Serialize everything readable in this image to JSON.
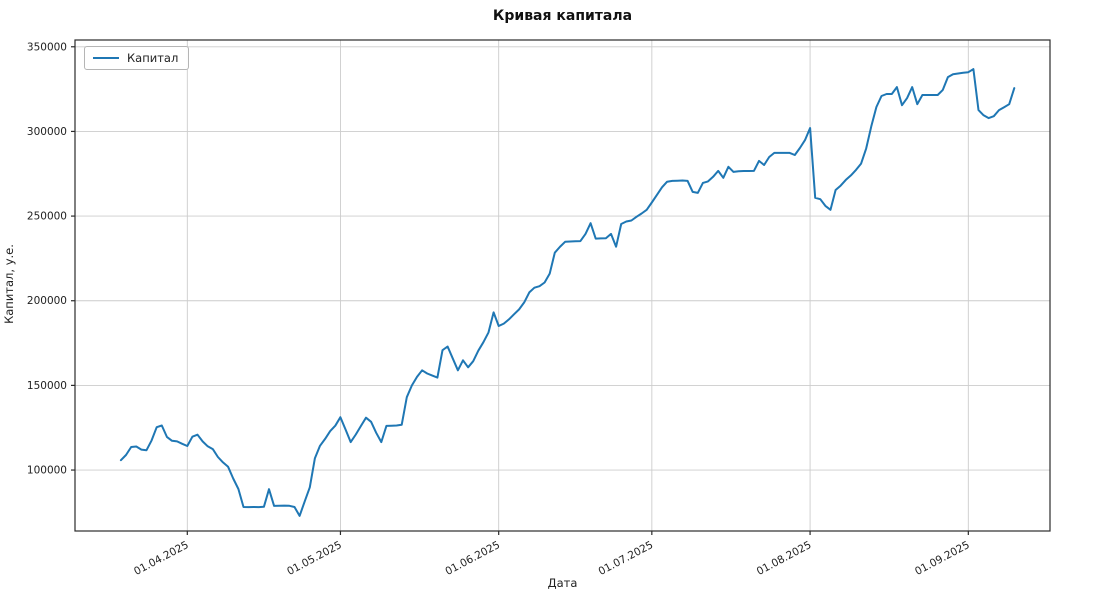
{
  "title": "Кривая капитала",
  "legend": {
    "label": "Капитал"
  },
  "axes": {
    "xlabel": "Дата",
    "ylabel": "Капитал, у.е.",
    "x_ticks": [
      {
        "date": "2025-04-01",
        "label": "01.04.2025"
      },
      {
        "date": "2025-05-01",
        "label": "01.05.2025"
      },
      {
        "date": "2025-06-01",
        "label": "01.06.2025"
      },
      {
        "date": "2025-07-01",
        "label": "01.07.2025"
      },
      {
        "date": "2025-08-01",
        "label": "01.08.2025"
      },
      {
        "date": "2025-09-01",
        "label": "01.09.2025"
      }
    ],
    "y_ticks": [
      {
        "value": 100000,
        "label": "100000"
      },
      {
        "value": 150000,
        "label": "150000"
      },
      {
        "value": 200000,
        "label": "200000"
      },
      {
        "value": 250000,
        "label": "250000"
      },
      {
        "value": 300000,
        "label": "300000"
      },
      {
        "value": 350000,
        "label": "350000"
      }
    ]
  },
  "colors": {
    "line": "#1f77b4",
    "grid": "#cccccc",
    "spine": "#2b2b2b",
    "tick_text": "#222222",
    "background": "#ffffff"
  },
  "chart_data": {
    "type": "line",
    "title": "Кривая капитала",
    "xlabel": "Дата",
    "ylabel": "Капитал, у.е.",
    "grid": true,
    "legend_position": "upper left",
    "xlim": [
      "2025-03-10",
      "2025-09-17"
    ],
    "ylim": [
      64000,
      354000
    ],
    "series": [
      {
        "name": "Капитал",
        "color": "#1f77b4",
        "x": [
          "2025-03-19",
          "2025-03-20",
          "2025-03-21",
          "2025-03-22",
          "2025-03-23",
          "2025-03-24",
          "2025-03-25",
          "2025-03-26",
          "2025-03-27",
          "2025-03-28",
          "2025-03-29",
          "2025-03-30",
          "2025-03-31",
          "2025-04-01",
          "2025-04-02",
          "2025-04-03",
          "2025-04-04",
          "2025-04-05",
          "2025-04-06",
          "2025-04-07",
          "2025-04-08",
          "2025-04-09",
          "2025-04-10",
          "2025-04-11",
          "2025-04-12",
          "2025-04-13",
          "2025-04-14",
          "2025-04-15",
          "2025-04-16",
          "2025-04-17",
          "2025-04-18",
          "2025-04-19",
          "2025-04-20",
          "2025-04-21",
          "2025-04-22",
          "2025-04-23",
          "2025-04-24",
          "2025-04-25",
          "2025-04-26",
          "2025-04-27",
          "2025-04-28",
          "2025-04-29",
          "2025-04-30",
          "2025-05-01",
          "2025-05-02",
          "2025-05-03",
          "2025-05-04",
          "2025-05-05",
          "2025-05-06",
          "2025-05-07",
          "2025-05-08",
          "2025-05-09",
          "2025-05-10",
          "2025-05-11",
          "2025-05-12",
          "2025-05-13",
          "2025-05-14",
          "2025-05-15",
          "2025-05-16",
          "2025-05-17",
          "2025-05-18",
          "2025-05-19",
          "2025-05-20",
          "2025-05-21",
          "2025-05-22",
          "2025-05-23",
          "2025-05-24",
          "2025-05-25",
          "2025-05-26",
          "2025-05-27",
          "2025-05-28",
          "2025-05-29",
          "2025-05-30",
          "2025-05-31",
          "2025-06-01",
          "2025-06-02",
          "2025-06-03",
          "2025-06-04",
          "2025-06-05",
          "2025-06-06",
          "2025-06-07",
          "2025-06-08",
          "2025-06-09",
          "2025-06-10",
          "2025-06-11",
          "2025-06-12",
          "2025-06-13",
          "2025-06-14",
          "2025-06-15",
          "2025-06-16",
          "2025-06-17",
          "2025-06-18",
          "2025-06-19",
          "2025-06-20",
          "2025-06-21",
          "2025-06-22",
          "2025-06-23",
          "2025-06-24",
          "2025-06-25",
          "2025-06-26",
          "2025-06-27",
          "2025-06-28",
          "2025-06-29",
          "2025-06-30",
          "2025-07-01",
          "2025-07-02",
          "2025-07-03",
          "2025-07-04",
          "2025-07-05",
          "2025-07-06",
          "2025-07-07",
          "2025-07-08",
          "2025-07-09",
          "2025-07-10",
          "2025-07-11",
          "2025-07-12",
          "2025-07-13",
          "2025-07-14",
          "2025-07-15",
          "2025-07-16",
          "2025-07-17",
          "2025-07-18",
          "2025-07-19",
          "2025-07-20",
          "2025-07-21",
          "2025-07-22",
          "2025-07-23",
          "2025-07-24",
          "2025-07-25",
          "2025-07-26",
          "2025-07-27",
          "2025-07-28",
          "2025-07-29",
          "2025-07-30",
          "2025-07-31",
          "2025-08-01",
          "2025-08-02",
          "2025-08-03",
          "2025-08-04",
          "2025-08-05",
          "2025-08-06",
          "2025-08-07",
          "2025-08-08",
          "2025-08-09",
          "2025-08-10",
          "2025-08-11",
          "2025-08-12",
          "2025-08-13",
          "2025-08-14",
          "2025-08-15",
          "2025-08-16",
          "2025-08-17",
          "2025-08-18",
          "2025-08-19",
          "2025-08-20",
          "2025-08-21",
          "2025-08-22",
          "2025-08-23",
          "2025-08-24",
          "2025-08-25",
          "2025-08-26",
          "2025-08-27",
          "2025-08-28",
          "2025-08-29",
          "2025-08-30",
          "2025-08-31",
          "2025-09-01",
          "2025-09-02",
          "2025-09-03",
          "2025-09-04",
          "2025-09-05",
          "2025-09-06",
          "2025-09-07",
          "2025-09-08",
          "2025-09-09",
          "2025-09-10"
        ],
        "y": [
          105800,
          108900,
          113600,
          113900,
          112100,
          111700,
          117500,
          125300,
          126300,
          119600,
          117300,
          116900,
          115500,
          114200,
          119700,
          120900,
          116900,
          114000,
          112400,
          107700,
          104500,
          101900,
          95000,
          88800,
          78200,
          78100,
          78200,
          78100,
          78300,
          88700,
          78800,
          78900,
          79000,
          78900,
          78200,
          72900,
          81500,
          89800,
          107000,
          114300,
          118400,
          123000,
          126200,
          131200,
          124000,
          116500,
          121000,
          126000,
          130900,
          128500,
          122000,
          116500,
          126100,
          126200,
          126300,
          126700,
          143000,
          150000,
          155000,
          158900,
          157000,
          155800,
          154600,
          170800,
          173000,
          166000,
          158900,
          164800,
          160700,
          164300,
          170500,
          175500,
          181300,
          193100,
          185100,
          186500,
          189000,
          192000,
          194900,
          199000,
          204900,
          207700,
          208600,
          210800,
          216000,
          228400,
          231800,
          234800,
          235000,
          235100,
          235200,
          239500,
          245800,
          236700,
          236800,
          236900,
          239500,
          231900,
          245300,
          246800,
          247400,
          249600,
          251500,
          253700,
          258000,
          262500,
          267000,
          270300,
          270800,
          270900,
          271000,
          270800,
          264300,
          263700,
          269600,
          270500,
          273200,
          276700,
          272600,
          279100,
          276100,
          276500,
          276600,
          276600,
          276700,
          282600,
          280200,
          284900,
          287300,
          287300,
          287300,
          287300,
          286100,
          290200,
          294900,
          302000,
          260800,
          260000,
          256000,
          253700,
          265400,
          268000,
          271400,
          274000,
          277300,
          281000,
          290000,
          303000,
          314400,
          320900,
          322100,
          322100,
          326200,
          315500,
          319700,
          326200,
          316100,
          321500,
          321500,
          321500,
          321500,
          324500,
          332100,
          333800,
          334200,
          334600,
          335000,
          336800,
          312600,
          309500,
          307900,
          309000,
          312600,
          314300,
          316100,
          325600
        ]
      }
    ]
  }
}
